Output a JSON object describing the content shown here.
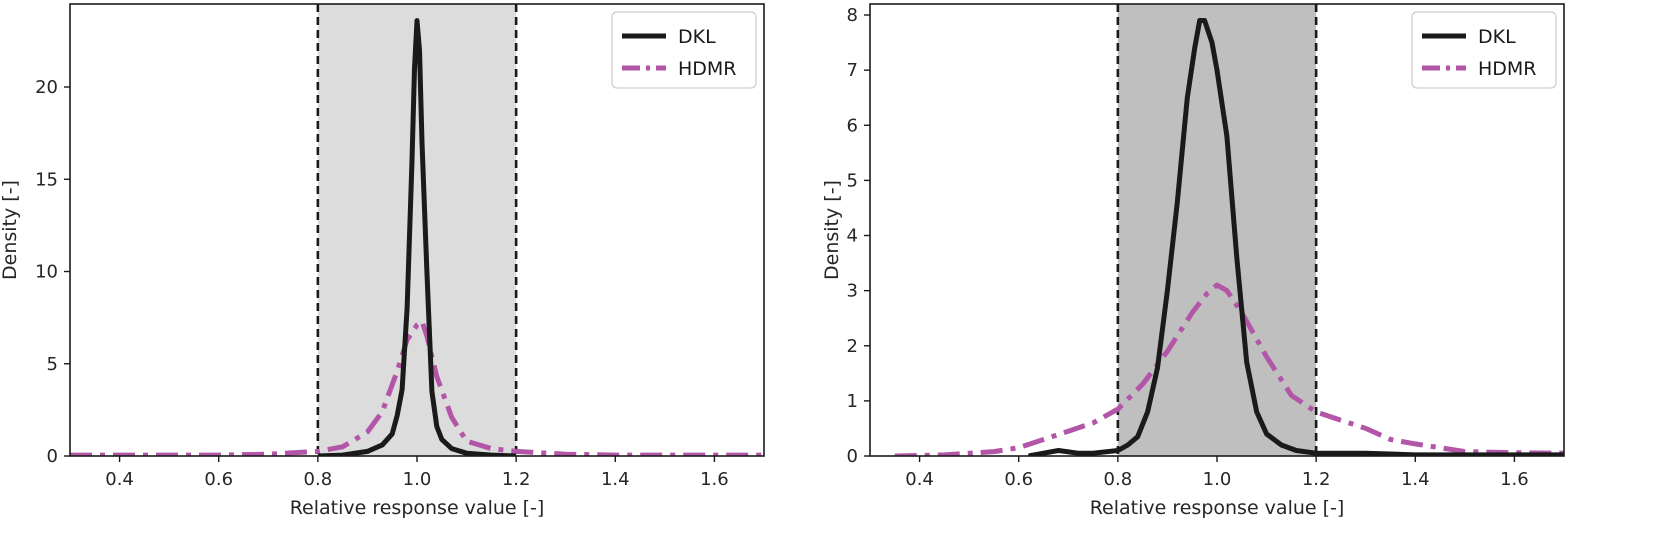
{
  "chart_data": [
    {
      "type": "line",
      "xlabel": "Relative response value [-]",
      "ylabel": "Density [-]",
      "xlim": [
        0.3,
        1.7
      ],
      "ylim": [
        0,
        24.5
      ],
      "xticks": [
        "0.4",
        "0.6",
        "0.8",
        "1.0",
        "1.2",
        "1.4",
        "1.6"
      ],
      "yticks": [
        "0",
        "5",
        "10",
        "15",
        "20"
      ],
      "band": {
        "from": 0.8,
        "to": 1.2,
        "color": "#dcdcdc"
      },
      "vlines": [
        0.8,
        1.2
      ],
      "legend_position": "upper right",
      "series": [
        {
          "name": "DKL",
          "color": "#1a1a1a",
          "dash": "solid",
          "points": [
            [
              0.8,
              0.0
            ],
            [
              0.85,
              0.05
            ],
            [
              0.9,
              0.25
            ],
            [
              0.93,
              0.6
            ],
            [
              0.95,
              1.2
            ],
            [
              0.96,
              2.2
            ],
            [
              0.97,
              3.6
            ],
            [
              0.98,
              8
            ],
            [
              0.99,
              16
            ],
            [
              0.995,
              21
            ],
            [
              1.0,
              23.6
            ],
            [
              1.005,
              22
            ],
            [
              1.01,
              17
            ],
            [
              1.02,
              10
            ],
            [
              1.03,
              3.5
            ],
            [
              1.04,
              1.6
            ],
            [
              1.05,
              0.9
            ],
            [
              1.07,
              0.4
            ],
            [
              1.1,
              0.15
            ],
            [
              1.15,
              0.05
            ],
            [
              1.2,
              0.0
            ]
          ]
        },
        {
          "name": "HDMR",
          "color": "#b356a8",
          "dash": "dashdot",
          "points": [
            [
              0.3,
              0.05
            ],
            [
              0.4,
              0.05
            ],
            [
              0.5,
              0.05
            ],
            [
              0.6,
              0.05
            ],
            [
              0.7,
              0.1
            ],
            [
              0.8,
              0.25
            ],
            [
              0.85,
              0.5
            ],
            [
              0.9,
              1.3
            ],
            [
              0.93,
              2.4
            ],
            [
              0.96,
              4.6
            ],
            [
              0.98,
              6.3
            ],
            [
              1.0,
              7.1
            ],
            [
              1.01,
              7.3
            ],
            [
              1.02,
              6.5
            ],
            [
              1.04,
              4.3
            ],
            [
              1.07,
              2.1
            ],
            [
              1.1,
              0.8
            ],
            [
              1.15,
              0.4
            ],
            [
              1.2,
              0.25
            ],
            [
              1.3,
              0.1
            ],
            [
              1.4,
              0.05
            ],
            [
              1.5,
              0.05
            ],
            [
              1.6,
              0.05
            ],
            [
              1.7,
              0.05
            ]
          ]
        }
      ]
    },
    {
      "type": "line",
      "xlabel": "Relative response value [-]",
      "ylabel": "Density [-]",
      "xlim": [
        0.3,
        1.7
      ],
      "ylim": [
        0,
        8.2
      ],
      "xticks": [
        "0.4",
        "0.6",
        "0.8",
        "1.0",
        "1.2",
        "1.4",
        "1.6"
      ],
      "yticks": [
        "0",
        "1",
        "2",
        "3",
        "4",
        "5",
        "6",
        "7",
        "8"
      ],
      "band": {
        "from": 0.8,
        "to": 1.2,
        "color": "#bfbfbf"
      },
      "vlines": [
        0.8,
        1.2
      ],
      "legend_position": "upper right",
      "series": [
        {
          "name": "DKL",
          "color": "#1a1a1a",
          "dash": "solid",
          "points": [
            [
              0.62,
              0.0
            ],
            [
              0.65,
              0.05
            ],
            [
              0.68,
              0.1
            ],
            [
              0.72,
              0.05
            ],
            [
              0.75,
              0.05
            ],
            [
              0.8,
              0.1
            ],
            [
              0.82,
              0.2
            ],
            [
              0.84,
              0.35
            ],
            [
              0.86,
              0.8
            ],
            [
              0.88,
              1.6
            ],
            [
              0.9,
              3.0
            ],
            [
              0.92,
              4.6
            ],
            [
              0.94,
              6.5
            ],
            [
              0.955,
              7.4
            ],
            [
              0.965,
              7.9
            ],
            [
              0.975,
              7.9
            ],
            [
              0.99,
              7.5
            ],
            [
              1.0,
              7.0
            ],
            [
              1.02,
              5.8
            ],
            [
              1.04,
              3.6
            ],
            [
              1.06,
              1.7
            ],
            [
              1.08,
              0.8
            ],
            [
              1.1,
              0.4
            ],
            [
              1.13,
              0.2
            ],
            [
              1.16,
              0.1
            ],
            [
              1.2,
              0.05
            ],
            [
              1.3,
              0.05
            ],
            [
              1.4,
              0.02
            ],
            [
              1.5,
              0.02
            ],
            [
              1.6,
              0.02
            ],
            [
              1.7,
              0.02
            ]
          ]
        },
        {
          "name": "HDMR",
          "color": "#b356a8",
          "dash": "dashdot",
          "points": [
            [
              0.35,
              0.0
            ],
            [
              0.45,
              0.02
            ],
            [
              0.55,
              0.08
            ],
            [
              0.6,
              0.15
            ],
            [
              0.65,
              0.3
            ],
            [
              0.7,
              0.45
            ],
            [
              0.75,
              0.6
            ],
            [
              0.8,
              0.85
            ],
            [
              0.85,
              1.3
            ],
            [
              0.9,
              1.9
            ],
            [
              0.95,
              2.6
            ],
            [
              0.98,
              2.95
            ],
            [
              1.0,
              3.1
            ],
            [
              1.02,
              3.0
            ],
            [
              1.05,
              2.6
            ],
            [
              1.1,
              1.8
            ],
            [
              1.15,
              1.1
            ],
            [
              1.2,
              0.8
            ],
            [
              1.25,
              0.65
            ],
            [
              1.3,
              0.5
            ],
            [
              1.35,
              0.3
            ],
            [
              1.4,
              0.22
            ],
            [
              1.45,
              0.15
            ],
            [
              1.5,
              0.08
            ],
            [
              1.6,
              0.06
            ],
            [
              1.7,
              0.05
            ]
          ]
        }
      ]
    }
  ]
}
